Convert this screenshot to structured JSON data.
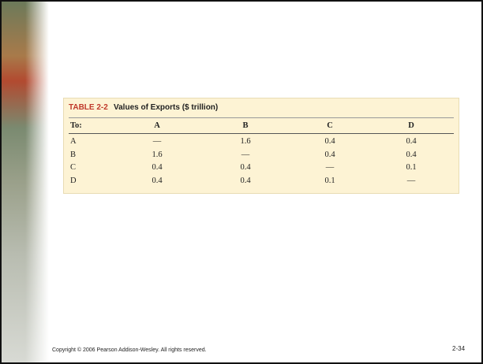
{
  "table": {
    "label": "TABLE 2-2",
    "title": "Values of Exports ($ trillion)",
    "header": [
      "To:",
      "A",
      "B",
      "C",
      "D"
    ],
    "rows": [
      [
        "A",
        "—",
        1.6,
        0.4,
        0.4
      ],
      [
        "B",
        1.6,
        "—",
        0.4,
        0.4
      ],
      [
        "C",
        0.4,
        0.4,
        "—",
        0.1
      ],
      [
        "D",
        0.4,
        0.4,
        0.1,
        "—"
      ]
    ]
  },
  "footer": {
    "copyright": "Copyright © 2006 Pearson Addison-Wesley. All rights reserved.",
    "page": "2-34"
  }
}
